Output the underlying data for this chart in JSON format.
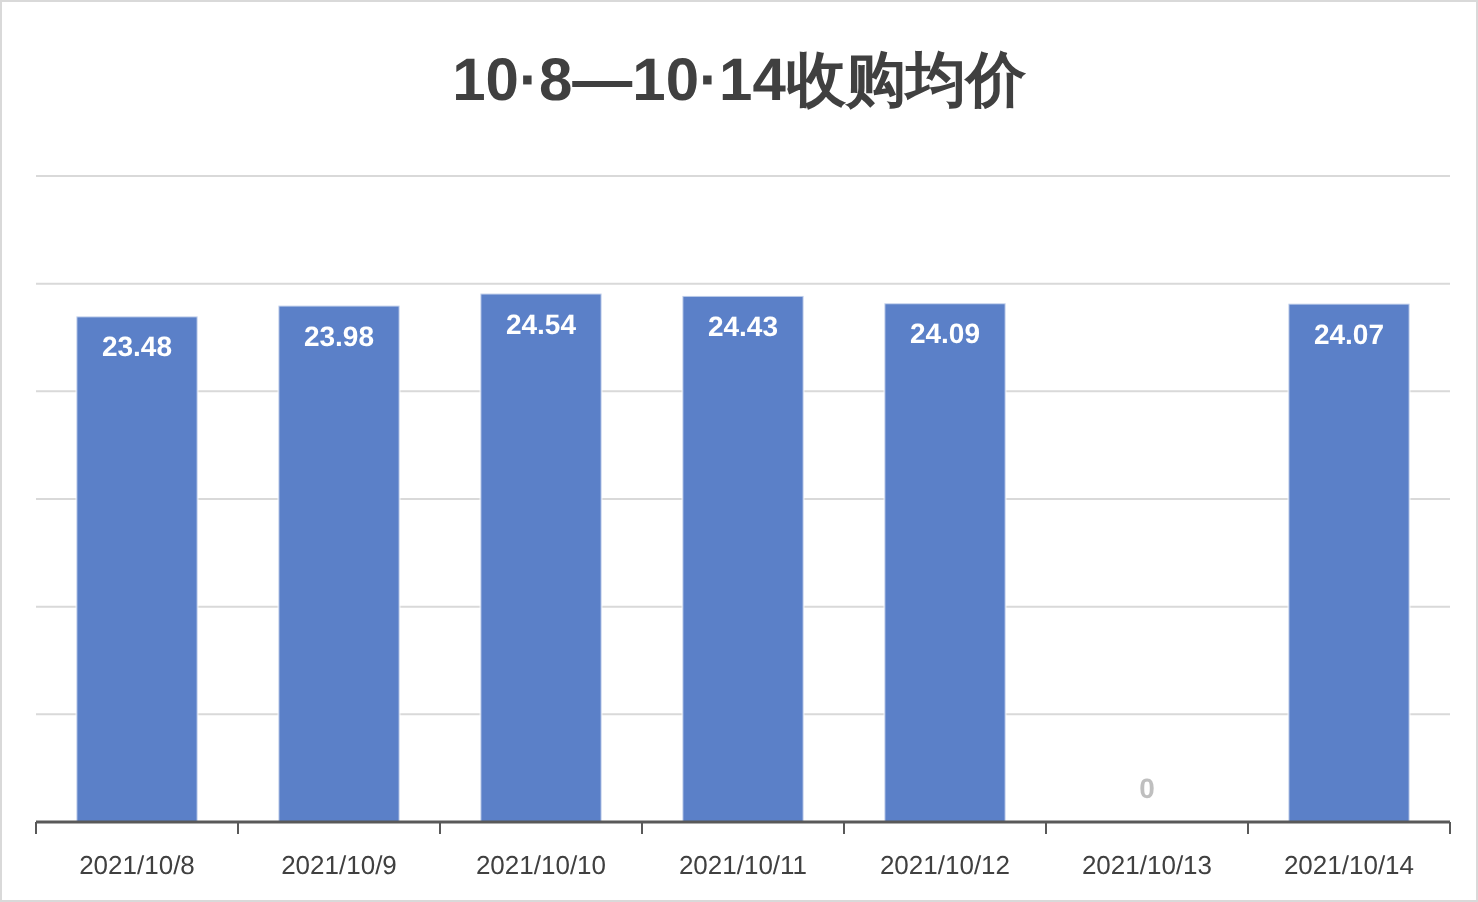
{
  "chart_data": {
    "type": "bar",
    "title": "10·8—10·14收购均价",
    "categories": [
      "2021/10/8",
      "2021/10/9",
      "2021/10/10",
      "2021/10/11",
      "2021/10/12",
      "2021/10/13",
      "2021/10/14"
    ],
    "values": [
      23.48,
      23.98,
      24.54,
      24.43,
      24.09,
      0,
      24.07
    ],
    "color": "#5b80c8",
    "ylim": [
      0,
      30
    ],
    "yticks": [
      {
        "value": 0,
        "label": null
      },
      {
        "value": 5,
        "label": null
      },
      {
        "value": 10,
        "label": null
      },
      {
        "value": 15,
        "label": null
      },
      {
        "value": 20,
        "label": null
      },
      {
        "value": 25,
        "label": null
      },
      {
        "value": 30,
        "label": null
      }
    ],
    "grid": true,
    "data_labels": true,
    "tick_labels": "x"
  }
}
